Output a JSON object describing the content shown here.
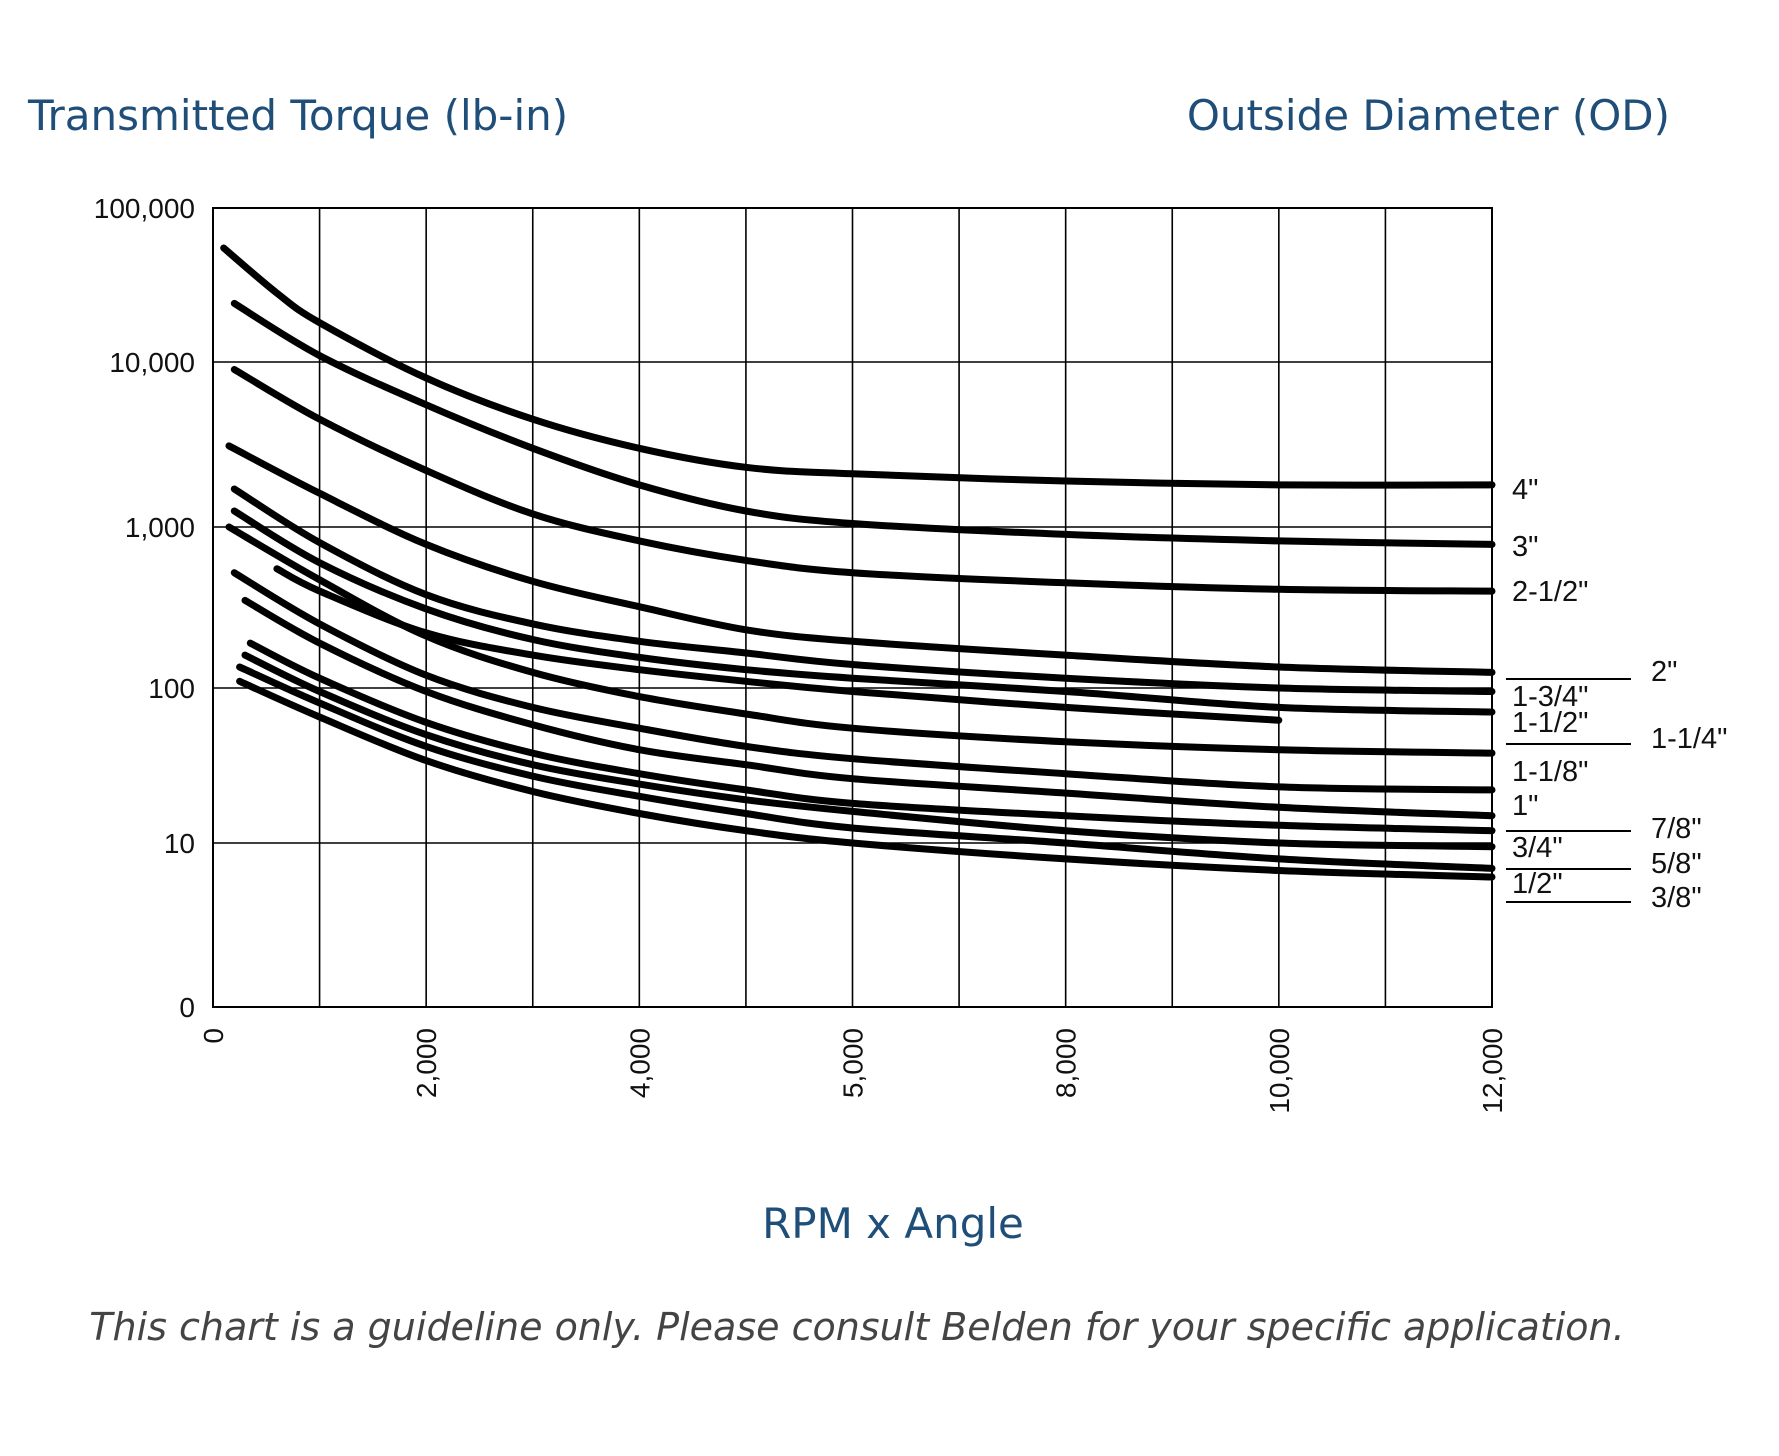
{
  "chart_data": {
    "type": "line",
    "ylabel": "Transmitted Torque (lb-in)",
    "legend_title": "Outside Diameter (OD)",
    "xlabel": "RPM x Angle",
    "note": "This chart is a guideline only. Please consult Belden for your specific application.",
    "x_ticks": [
      "0",
      "2,000",
      "4,000",
      "5,000",
      "8,000",
      "10,000",
      "12,000"
    ],
    "y_ticks": [
      "100,000",
      "10,000",
      "1,000",
      "100",
      "10",
      "0"
    ],
    "x_scale": "categorical-ticks",
    "y_scale": "log",
    "xlim": [
      0,
      12000
    ],
    "grid": "on",
    "x_grid_values": [
      1000,
      2000,
      3000,
      4000,
      5000,
      6000,
      7000,
      8000,
      9000,
      10000,
      11000,
      12000
    ],
    "series": [
      {
        "name": "4\"",
        "x": [
          100,
          600,
          1000,
          2000,
          3000,
          4000,
          5000,
          6000,
          8000,
          10000,
          12000
        ],
        "y": [
          55000,
          28000,
          18000,
          8000,
          4500,
          3000,
          2300,
          2100,
          1900,
          1800,
          1800
        ]
      },
      {
        "name": "3\"",
        "x": [
          200,
          1000,
          2000,
          3000,
          4000,
          5000,
          6000,
          8000,
          10000,
          12000
        ],
        "y": [
          24000,
          11000,
          5500,
          3000,
          1800,
          1250,
          1050,
          900,
          820,
          780
        ]
      },
      {
        "name": "2-1/2\"",
        "x": [
          200,
          1000,
          2000,
          3000,
          4000,
          5000,
          6000,
          8000,
          10000,
          12000
        ],
        "y": [
          9000,
          4500,
          2200,
          1200,
          820,
          620,
          520,
          450,
          410,
          400
        ]
      },
      {
        "name": "2\"",
        "x": [
          150,
          1000,
          2000,
          3000,
          4000,
          5000,
          6000,
          8000,
          10000,
          12000
        ],
        "y": [
          3100,
          1600,
          780,
          460,
          320,
          230,
          195,
          160,
          135,
          125
        ]
      },
      {
        "name": "1-3/4\"",
        "x": [
          200,
          1000,
          2000,
          3000,
          4000,
          5000,
          6000,
          8000,
          10000,
          12000
        ],
        "y": [
          1700,
          800,
          380,
          250,
          195,
          165,
          140,
          115,
          100,
          95
        ]
      },
      {
        "name": "1-1/2\"",
        "x": [
          200,
          1000,
          2000,
          3000,
          4000,
          5000,
          6000,
          8000,
          10000,
          12000
        ],
        "y": [
          1250,
          600,
          310,
          200,
          155,
          130,
          115,
          95,
          75,
          70
        ]
      },
      {
        "name": "1-1/4\"",
        "x": [
          600,
          1000,
          2000,
          3000,
          4000,
          5000,
          6000,
          8000,
          10000
        ],
        "y": [
          550,
          400,
          220,
          160,
          130,
          110,
          95,
          75,
          62
        ]
      },
      {
        "name": "1-1/8\"",
        "x": [
          150,
          1000,
          2000,
          3000,
          4000,
          5000,
          6000,
          8000,
          10000,
          12000
        ],
        "y": [
          1000,
          470,
          210,
          125,
          88,
          68,
          55,
          45,
          40,
          38
        ]
      },
      {
        "name": "1\"",
        "x": [
          200,
          1000,
          2000,
          3000,
          4000,
          5000,
          6000,
          8000,
          10000,
          12000
        ],
        "y": [
          520,
          250,
          120,
          75,
          55,
          42,
          35,
          28,
          23,
          22
        ]
      },
      {
        "name": "7/8\"",
        "x": [
          300,
          1000,
          2000,
          3000,
          4000,
          5000,
          6000,
          8000,
          10000,
          12000
        ],
        "y": [
          350,
          190,
          95,
          58,
          40,
          32,
          26,
          21,
          17,
          15
        ]
      },
      {
        "name": "3/4\"",
        "x": [
          350,
          1000,
          2000,
          3000,
          4000,
          5000,
          6000,
          8000,
          10000,
          12000
        ],
        "y": [
          190,
          115,
          60,
          38,
          28,
          22,
          18,
          15,
          13,
          12
        ]
      },
      {
        "name": "5/8\"",
        "x": [
          300,
          1000,
          2000,
          3000,
          4000,
          5000,
          6000,
          8000,
          10000,
          12000
        ],
        "y": [
          160,
          95,
          50,
          32,
          24,
          19,
          16,
          12,
          10,
          9.5
        ]
      },
      {
        "name": "1/2\"",
        "x": [
          250,
          1000,
          2000,
          3000,
          4000,
          5000,
          6000,
          8000,
          10000,
          12000
        ],
        "y": [
          135,
          80,
          42,
          27,
          20,
          15.5,
          12.5,
          10,
          8,
          7
        ]
      },
      {
        "name": "3/8\"",
        "x": [
          250,
          1000,
          2000,
          3000,
          4000,
          5000,
          6000,
          8000,
          10000,
          12000
        ],
        "y": [
          110,
          65,
          34,
          21.5,
          15.5,
          12,
          10,
          8,
          6.8,
          6.2
        ]
      }
    ]
  }
}
